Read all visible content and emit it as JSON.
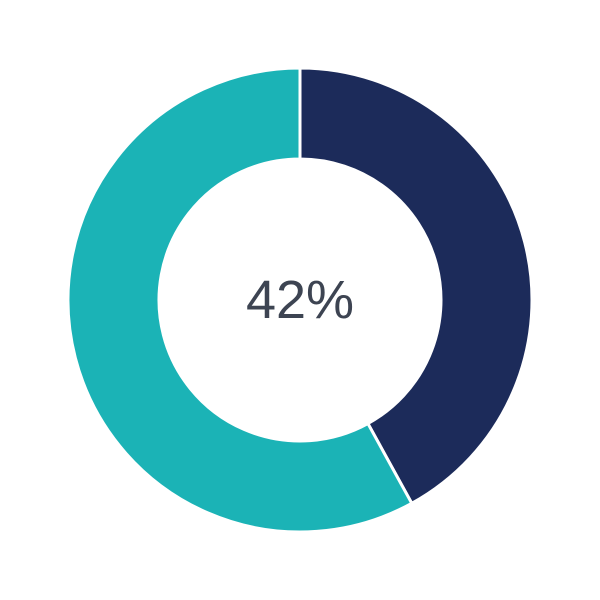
{
  "chart_data": {
    "type": "pie",
    "variant": "donut",
    "categories": [
      "",
      ""
    ],
    "values": [
      42,
      58
    ],
    "colors": [
      "#1c2b5a",
      "#1bb3b6"
    ],
    "center_label": "42%",
    "start": "top",
    "direction": "clockwise"
  }
}
